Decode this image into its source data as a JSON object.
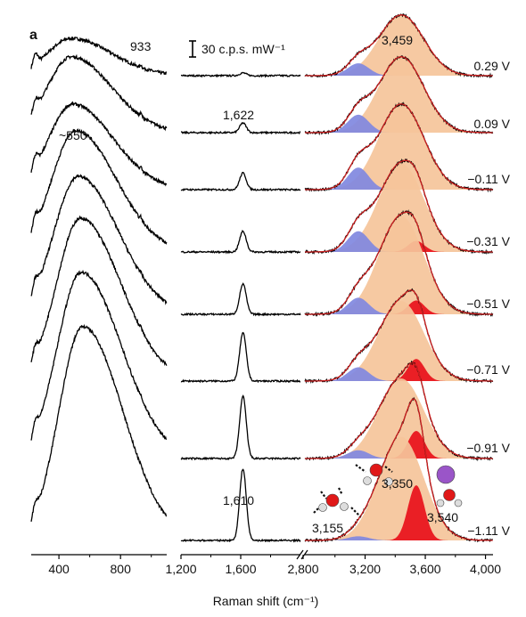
{
  "panel_label": "a",
  "chart_data": {
    "type": "line",
    "subtype": "stacked Raman spectra, broken x-axis in three segments",
    "xlabel": "Raman shift (cm⁻¹)",
    "scale_bar": "30 c.p.s. mW⁻¹",
    "xticks": [
      {
        "value": 400,
        "label": "400"
      },
      {
        "value": 800,
        "label": "800"
      },
      {
        "value": 1200,
        "label": "1,200"
      },
      {
        "value": 1600,
        "label": "1,600"
      },
      {
        "value": 2800,
        "label": "2,800"
      },
      {
        "value": 3200,
        "label": "3,200"
      },
      {
        "value": 3600,
        "label": "3,600"
      },
      {
        "value": 4000,
        "label": "4,000"
      }
    ],
    "segments": [
      {
        "range": [
          220,
          1100
        ]
      },
      {
        "range": [
          1200,
          2000
        ]
      },
      {
        "range": [
          2800,
          4050
        ]
      }
    ],
    "potentials": [
      "0.29 V",
      "0.09 V",
      "−0.11 V",
      "−0.31 V",
      "−0.51 V",
      "−0.71 V",
      "−0.91 V",
      "−1.11 V"
    ],
    "low_band": {
      "center": [
        480,
        480,
        490,
        510,
        525,
        540,
        545,
        555
      ],
      "height": [
        0.27,
        0.55,
        0.62,
        0.88,
        1.0,
        1.18,
        1.35,
        1.55
      ]
    },
    "bending_band": {
      "center": 1615,
      "height": [
        0.02,
        0.07,
        0.12,
        0.15,
        0.22,
        0.35,
        0.45,
        0.52
      ]
    },
    "oh_components": {
      "blue": {
        "center": 3155,
        "height": [
          0.09,
          0.13,
          0.16,
          0.15,
          0.12,
          0.1,
          0.06,
          0.03
        ]
      },
      "orange": {
        "center": 3440,
        "height": [
          0.44,
          0.55,
          0.62,
          0.64,
          0.71,
          0.58,
          0.58,
          0.75
        ]
      },
      "red": {
        "center": 3540,
        "height": [
          0.0,
          0.0,
          0.0,
          0.08,
          0.1,
          0.16,
          0.2,
          0.4
        ]
      }
    },
    "annotations": [
      {
        "text": "933",
        "x": 933
      },
      {
        "text": "~550",
        "x": 550
      },
      {
        "text": "1,622",
        "x": 1622
      },
      {
        "text": "1,610",
        "x": 1610
      },
      {
        "text": "3,459",
        "x": 3459
      },
      {
        "text": "3,155",
        "x": 3155
      },
      {
        "text": "3,350",
        "x": 3350
      },
      {
        "text": "3,540",
        "x": 3540
      }
    ],
    "colors": {
      "black": "#000000",
      "fit": "#cc1f1f",
      "orange": "#f5c49a",
      "blue": "#8088e0",
      "red": "#e8101a",
      "k_ion": "#9a55c8",
      "o_atom": "#e01818",
      "h_atom": "#dddddd"
    }
  }
}
